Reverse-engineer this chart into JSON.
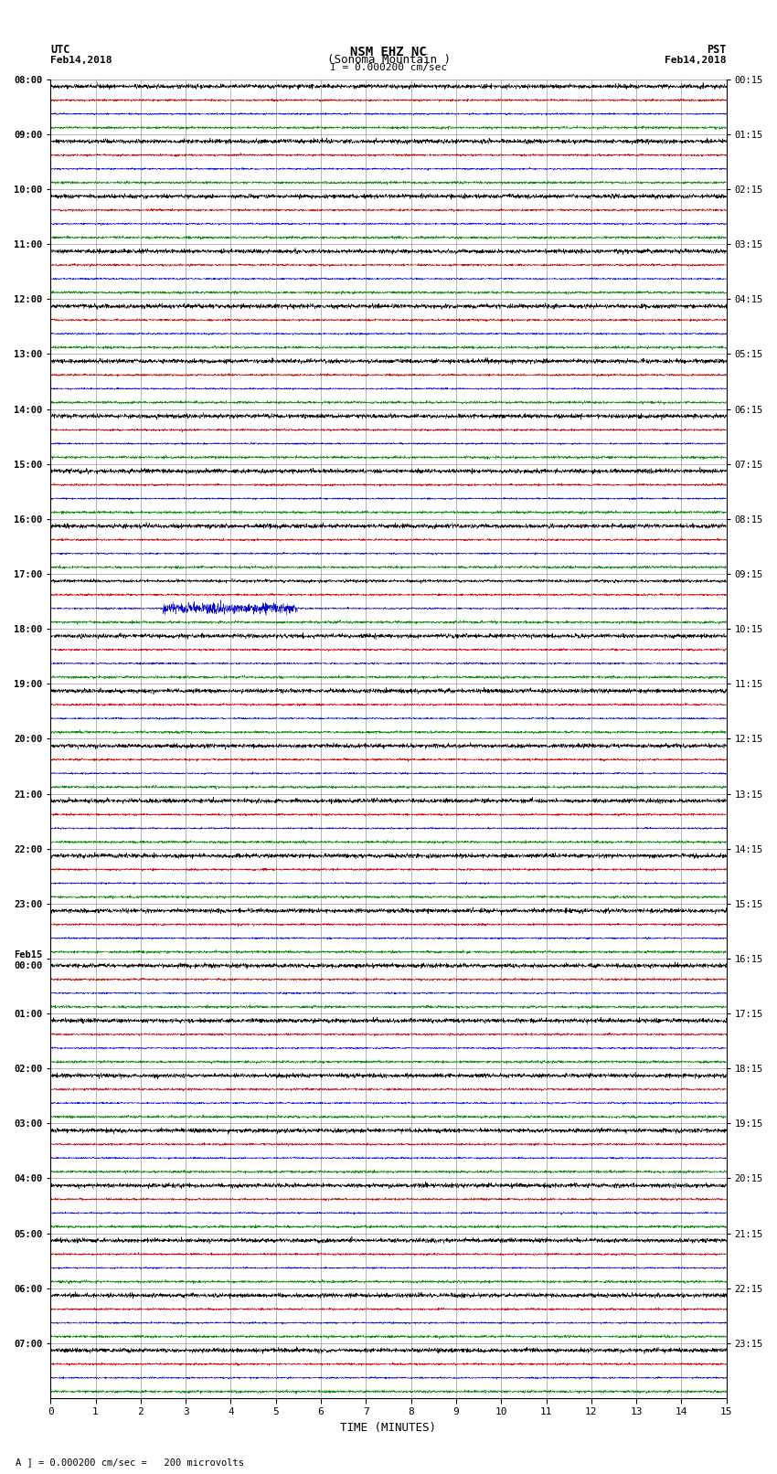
{
  "title_line1": "NSM EHZ NC",
  "title_line2": "(Sonoma Mountain )",
  "scale_label": "I = 0.000200 cm/sec",
  "utc_label": "UTC\nFeb14,2018",
  "pst_label": "PST\nFeb14,2018",
  "bottom_label": "A ] = 0.000200 cm/sec =   200 microvolts",
  "xlabel": "TIME (MINUTES)",
  "ylim_label_left": [
    "08:00",
    "09:00",
    "10:00",
    "11:00",
    "12:00",
    "13:00",
    "14:00",
    "15:00",
    "16:00",
    "17:00",
    "18:00",
    "19:00",
    "20:00",
    "21:00",
    "22:00",
    "23:00",
    "Feb15\n00:00",
    "01:00",
    "02:00",
    "03:00",
    "04:00",
    "05:00",
    "06:00",
    "07:00"
  ],
  "ylim_label_right": [
    "00:15",
    "01:15",
    "02:15",
    "03:15",
    "04:15",
    "05:15",
    "06:15",
    "07:15",
    "08:15",
    "09:15",
    "10:15",
    "11:15",
    "12:15",
    "13:15",
    "14:15",
    "15:15",
    "16:15",
    "17:15",
    "18:15",
    "19:15",
    "20:15",
    "21:15",
    "22:15",
    "23:15"
  ],
  "n_rows": 24,
  "n_traces_per_row": 4,
  "trace_colors": [
    "#000000",
    "#cc0000",
    "#0000cc",
    "#008800"
  ],
  "xlim": [
    0,
    15
  ],
  "xticks": [
    0,
    1,
    2,
    3,
    4,
    5,
    6,
    7,
    8,
    9,
    10,
    11,
    12,
    13,
    14,
    15
  ],
  "noise_amplitude": 0.018,
  "bg_color": "#ffffff",
  "grid_color": "#999999",
  "fig_width": 8.5,
  "fig_height": 16.13
}
